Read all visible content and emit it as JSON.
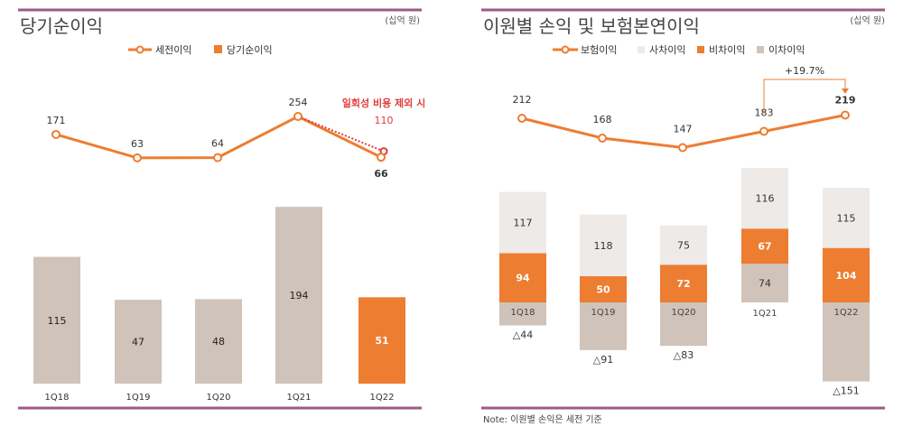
{
  "colors": {
    "orange": "#ED7D31",
    "bar_gray": "#CFC3BA",
    "bar_light": "#EEEAE7",
    "rule": "#9E5A86",
    "red": "#E03C3C",
    "text": "#333333"
  },
  "chart_data": [
    {
      "type": "bar+line",
      "title": "당기순이익",
      "unit": "(십억 원)",
      "categories": [
        "1Q18",
        "1Q19",
        "1Q20",
        "1Q21",
        "1Q22"
      ],
      "series": [
        {
          "name": "세전이익",
          "type": "line",
          "values": [
            171,
            63,
            64,
            254,
            66
          ]
        },
        {
          "name": "당기순이익",
          "type": "bar",
          "values": [
            115,
            47,
            48,
            194,
            51
          ]
        }
      ],
      "annotation": {
        "label": "일회성 비용 제외 시",
        "value": 110
      },
      "legend": "top"
    },
    {
      "type": "stacked-bar+line",
      "title": "이원별 손익 및 보험본연이익",
      "unit": "(십억 원)",
      "categories": [
        "1Q18",
        "1Q19",
        "1Q20",
        "1Q21",
        "1Q22"
      ],
      "series": [
        {
          "name": "보험이익",
          "type": "line",
          "values": [
            212,
            168,
            147,
            183,
            219
          ]
        },
        {
          "name": "사차이익",
          "type": "bar",
          "values": [
            117,
            118,
            75,
            116,
            115
          ]
        },
        {
          "name": "비차이익",
          "type": "bar",
          "values": [
            94,
            50,
            72,
            67,
            104
          ]
        },
        {
          "name": "이차이익",
          "type": "bar",
          "values": [
            -44,
            -91,
            -83,
            74,
            -151
          ]
        }
      ],
      "negative_labels": [
        "△44",
        "△91",
        "△83",
        "74",
        "△151"
      ],
      "growth_annotation": "+19.7%",
      "note": "Note: 이원별 손익은 세전 기준",
      "legend": "top"
    }
  ]
}
